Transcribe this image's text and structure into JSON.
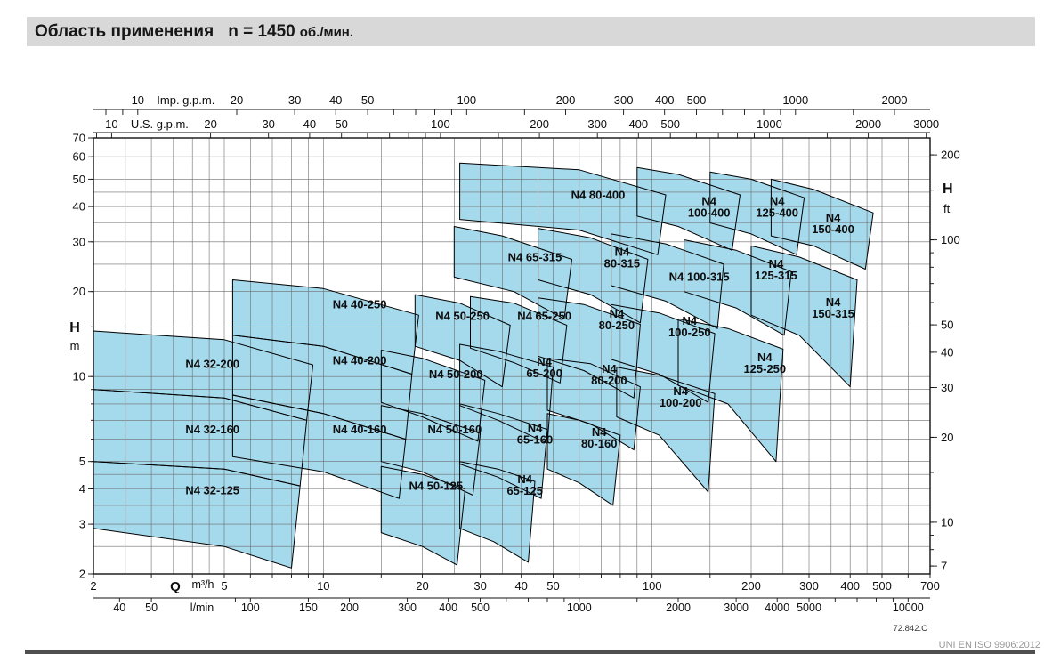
{
  "title": {
    "text": "Область применения",
    "speed": "n = 1450",
    "unit": "об./мин."
  },
  "footer": {
    "code": "72.842.C",
    "note": "UNI EN ISO 9906:2012"
  },
  "chart_data": {
    "type": "area",
    "title": "Область применения n = 1450 об./мин.",
    "description": "Application ranges (Q-H fields) of N4 pump models at n = 1450 rpm on log-log axes",
    "q_axis_m3h": {
      "symbol": "Q",
      "unit": "m³/h",
      "range": [
        2,
        700
      ],
      "ticks": [
        2,
        5,
        10,
        20,
        30,
        40,
        50,
        100,
        200,
        300,
        400,
        500,
        700
      ]
    },
    "h_axis_m": {
      "symbol": "H",
      "unit": "m",
      "range": [
        2,
        70
      ],
      "ticks": [
        70,
        60,
        50,
        40,
        30,
        20,
        10,
        5,
        4,
        3,
        2
      ]
    },
    "imp_gpm_axis": {
      "unit": "Imp. g.p.m.",
      "per_m3h": 3.6661,
      "ticks": [
        10,
        20,
        30,
        40,
        50,
        100,
        200,
        300,
        400,
        500,
        1000,
        2000
      ]
    },
    "us_gpm_axis": {
      "unit": "U.S. g.p.m.",
      "per_m3h": 4.4029,
      "ticks": [
        10,
        20,
        30,
        40,
        50,
        100,
        200,
        300,
        400,
        500,
        1000,
        2000,
        3000
      ]
    },
    "lmin_axis": {
      "unit": "l/min",
      "per_m3h": 16.667,
      "ticks": [
        40,
        50,
        100,
        150,
        200,
        300,
        400,
        500,
        1000,
        2000,
        3000,
        4000,
        5000,
        10000
      ]
    },
    "ft_axis": {
      "symbol": "H",
      "unit": "ft",
      "per_m": 3.2808,
      "ticks": [
        200,
        100,
        50,
        40,
        30,
        20,
        10,
        7
      ]
    },
    "regions": [
      {
        "name": "N4 32-125",
        "label_lines": [
          "N4 32-125"
        ],
        "label_at_qh": [
          4.6,
          3.95
        ],
        "polygon_qh": [
          [
            2,
            5.0
          ],
          [
            5,
            4.7
          ],
          [
            8.5,
            4.1
          ],
          [
            8.0,
            2.1
          ],
          [
            5,
            2.5
          ],
          [
            2,
            2.9
          ]
        ]
      },
      {
        "name": "N4 32-160",
        "label_lines": [
          "N4 32-160"
        ],
        "label_at_qh": [
          4.6,
          6.5
        ],
        "polygon_qh": [
          [
            2,
            9.0
          ],
          [
            5,
            8.4
          ],
          [
            8.9,
            7.0
          ],
          [
            8.5,
            4.1
          ],
          [
            5,
            4.7
          ],
          [
            2,
            5.0
          ]
        ]
      },
      {
        "name": "N4 32-200",
        "label_lines": [
          "N4 32-200"
        ],
        "label_at_qh": [
          4.6,
          11.1
        ],
        "polygon_qh": [
          [
            2,
            14.5
          ],
          [
            5,
            13.5
          ],
          [
            9.3,
            11.0
          ],
          [
            8.9,
            7.0
          ],
          [
            5,
            8.4
          ],
          [
            2,
            9.0
          ]
        ]
      },
      {
        "name": "N4 40-160",
        "label_lines": [
          "N4 40-160"
        ],
        "label_at_qh": [
          12.9,
          6.5
        ],
        "polygon_qh": [
          [
            5.3,
            8.6
          ],
          [
            10,
            7.4
          ],
          [
            17.8,
            6.0
          ],
          [
            17.0,
            3.7
          ],
          [
            10,
            4.6
          ],
          [
            5.3,
            5.2
          ]
        ]
      },
      {
        "name": "N4 40-200",
        "label_lines": [
          "N4 40-200"
        ],
        "label_at_qh": [
          12.9,
          11.4
        ],
        "polygon_qh": [
          [
            5.3,
            14.0
          ],
          [
            10,
            12.8
          ],
          [
            18.6,
            10.2
          ],
          [
            17.8,
            6.0
          ],
          [
            10,
            7.4
          ],
          [
            5.3,
            8.6
          ]
        ]
      },
      {
        "name": "N4 40-250",
        "label_lines": [
          "N4 40-250"
        ],
        "label_at_qh": [
          12.9,
          18.0
        ],
        "polygon_qh": [
          [
            5.3,
            22
          ],
          [
            10,
            20.5
          ],
          [
            19.5,
            16.5
          ],
          [
            18.6,
            10.2
          ],
          [
            10,
            12.8
          ],
          [
            5.3,
            14.0
          ]
        ]
      },
      {
        "name": "N4 50-125",
        "label_lines": [
          "N4 50-125"
        ],
        "label_at_qh": [
          22,
          4.1
        ],
        "polygon_qh": [
          [
            15,
            4.8
          ],
          [
            20,
            4.5
          ],
          [
            27,
            4.0
          ],
          [
            25.5,
            2.15
          ],
          [
            20,
            2.5
          ],
          [
            15,
            2.8
          ]
        ]
      },
      {
        "name": "N4 50-160",
        "label_lines": [
          "N4 50-160"
        ],
        "label_at_qh": [
          25.1,
          6.5
        ],
        "polygon_qh": [
          [
            15,
            7.9
          ],
          [
            20,
            7.4
          ],
          [
            30,
            6.3
          ],
          [
            28.5,
            3.8
          ],
          [
            20,
            4.6
          ],
          [
            15,
            5.0
          ]
        ]
      },
      {
        "name": "N4 50-200",
        "label_lines": [
          "N4 50-200"
        ],
        "label_at_qh": [
          25.3,
          10.2
        ],
        "polygon_qh": [
          [
            15,
            12.4
          ],
          [
            20,
            11.6
          ],
          [
            31,
            9.7
          ],
          [
            29.5,
            5.9
          ],
          [
            20,
            7.2
          ],
          [
            15,
            8.1
          ]
        ]
      },
      {
        "name": "N4 50-250",
        "label_lines": [
          "N4 50-250"
        ],
        "label_at_qh": [
          26.5,
          16.4
        ],
        "polygon_qh": [
          [
            19,
            19.5
          ],
          [
            26,
            18.2
          ],
          [
            37,
            15.2
          ],
          [
            35,
            9.2
          ],
          [
            26,
            11.4
          ],
          [
            19,
            12.8
          ]
        ]
      },
      {
        "name": "N4 65-125",
        "label_lines": [
          "N4",
          "65-125"
        ],
        "label_at_qh": [
          41,
          4.15
        ],
        "polygon_qh": [
          [
            26,
            5.0
          ],
          [
            34,
            4.7
          ],
          [
            44,
            4.25
          ],
          [
            42,
            2.2
          ],
          [
            33,
            2.6
          ],
          [
            26,
            2.9
          ]
        ]
      },
      {
        "name": "N4 65-160",
        "label_lines": [
          "N4",
          "65-160"
        ],
        "label_at_qh": [
          44,
          6.3
        ],
        "polygon_qh": [
          [
            26,
            8.0
          ],
          [
            34,
            7.4
          ],
          [
            48,
            6.5
          ],
          [
            46,
            3.7
          ],
          [
            34,
            4.4
          ],
          [
            26,
            4.9
          ]
        ]
      },
      {
        "name": "N4 65-200",
        "label_lines": [
          "N4",
          "65-200"
        ],
        "label_at_qh": [
          47,
          10.8
        ],
        "polygon_qh": [
          [
            26,
            13.0
          ],
          [
            34,
            12.3
          ],
          [
            50,
            10.8
          ],
          [
            48,
            5.8
          ],
          [
            34,
            7.0
          ],
          [
            26,
            7.9
          ]
        ]
      },
      {
        "name": "N4 65-250",
        "label_lines": [
          "N4 65-250"
        ],
        "label_at_qh": [
          47,
          16.4
        ],
        "polygon_qh": [
          [
            28,
            19.2
          ],
          [
            38,
            18.2
          ],
          [
            55,
            15.2
          ],
          [
            52.5,
            9.5
          ],
          [
            38,
            11.2
          ],
          [
            28,
            12.6
          ]
        ]
      },
      {
        "name": "N4 65-315",
        "label_lines": [
          "N4 65-315"
        ],
        "label_at_qh": [
          44,
          26.5
        ],
        "polygon_qh": [
          [
            25,
            34
          ],
          [
            35,
            31.5
          ],
          [
            57,
            26
          ],
          [
            54,
            16
          ],
          [
            38,
            20
          ],
          [
            25,
            22.5
          ]
        ]
      },
      {
        "name": "N4 80-160",
        "label_lines": [
          "N4",
          "80-160"
        ],
        "label_at_qh": [
          69,
          6.1
        ],
        "polygon_qh": [
          [
            48,
            7.4
          ],
          [
            60,
            7.0
          ],
          [
            80,
            6.2
          ],
          [
            76,
            3.5
          ],
          [
            60,
            4.2
          ],
          [
            48,
            4.7
          ]
        ]
      },
      {
        "name": "N4 80-200",
        "label_lines": [
          "N4",
          "80-200"
        ],
        "label_at_qh": [
          74,
          10.2
        ],
        "polygon_qh": [
          [
            48,
            11.6
          ],
          [
            65,
            11.1
          ],
          [
            92,
            9.2
          ],
          [
            88,
            5.5
          ],
          [
            65,
            6.8
          ],
          [
            48,
            7.6
          ]
        ]
      },
      {
        "name": "N4 80-250",
        "label_lines": [
          "N4",
          "80-250"
        ],
        "label_at_qh": [
          78,
          16.0
        ],
        "polygon_qh": [
          [
            45,
            19.0
          ],
          [
            62,
            18.0
          ],
          [
            92,
            15.3
          ],
          [
            88,
            8.4
          ],
          [
            62,
            10.5
          ],
          [
            45,
            11.8
          ]
        ]
      },
      {
        "name": "N4 80-315",
        "label_lines": [
          "N4",
          "80-315"
        ],
        "label_at_qh": [
          81,
          26.5
        ],
        "polygon_qh": [
          [
            45,
            33.5
          ],
          [
            65,
            31
          ],
          [
            97,
            26
          ],
          [
            92,
            15.5
          ],
          [
            65,
            19.5
          ],
          [
            45,
            22
          ]
        ]
      },
      {
        "name": "N4 80-400",
        "label_lines": [
          "N4 80-400"
        ],
        "label_at_qh": [
          68.5,
          44
        ],
        "polygon_qh": [
          [
            26,
            57
          ],
          [
            60,
            54
          ],
          [
            110,
            44
          ],
          [
            104,
            27
          ],
          [
            60,
            33
          ],
          [
            26,
            36
          ]
        ]
      },
      {
        "name": "N4 100-200",
        "label_lines": [
          "N4",
          "100-200"
        ],
        "label_at_qh": [
          122,
          8.5
        ],
        "polygon_qh": [
          [
            78,
            10.8
          ],
          [
            105,
            10.1
          ],
          [
            155,
            8.7
          ],
          [
            148,
            3.9
          ],
          [
            105,
            6.2
          ],
          [
            78,
            7.2
          ]
        ]
      },
      {
        "name": "N4 100-250",
        "label_lines": [
          "N4",
          "100-250"
        ],
        "label_at_qh": [
          130,
          15.1
        ],
        "polygon_qh": [
          [
            75,
            18.0
          ],
          [
            105,
            16.8
          ],
          [
            155,
            14.2
          ],
          [
            148,
            8.1
          ],
          [
            105,
            10.2
          ],
          [
            75,
            11.5
          ]
        ]
      },
      {
        "name": "N4 100-315",
        "label_lines": [
          "N4 100-315"
        ],
        "label_at_qh": [
          139,
          22.6
        ],
        "polygon_qh": [
          [
            75,
            32
          ],
          [
            110,
            29.5
          ],
          [
            165,
            25
          ],
          [
            158,
            14.8
          ],
          [
            110,
            18.5
          ],
          [
            75,
            21
          ]
        ]
      },
      {
        "name": "N4 100-400",
        "label_lines": [
          "N4",
          "100-400"
        ],
        "label_at_qh": [
          149,
          40
        ],
        "polygon_qh": [
          [
            90,
            55
          ],
          [
            120,
            52
          ],
          [
            185,
            44
          ],
          [
            175,
            28
          ],
          [
            120,
            34
          ],
          [
            90,
            37
          ]
        ]
      },
      {
        "name": "N4 125-250",
        "label_lines": [
          "N4",
          "125-250"
        ],
        "label_at_qh": [
          220,
          11.2
        ],
        "polygon_qh": [
          [
            120,
            16
          ],
          [
            170,
            14.8
          ],
          [
            250,
            12.5
          ],
          [
            238,
            5.0
          ],
          [
            170,
            8.0
          ],
          [
            120,
            9.3
          ]
        ]
      },
      {
        "name": "N4 125-315",
        "label_lines": [
          "N4",
          "125-315"
        ],
        "label_at_qh": [
          238,
          24
        ],
        "polygon_qh": [
          [
            125,
            30.5
          ],
          [
            180,
            28
          ],
          [
            265,
            23.5
          ],
          [
            252,
            14
          ],
          [
            180,
            17.5
          ],
          [
            125,
            20
          ]
        ]
      },
      {
        "name": "N4 125-400",
        "label_lines": [
          "N4",
          "125-400"
        ],
        "label_at_qh": [
          240,
          40
        ],
        "polygon_qh": [
          [
            150,
            53
          ],
          [
            200,
            50
          ],
          [
            290,
            43
          ],
          [
            275,
            27
          ],
          [
            200,
            32
          ],
          [
            150,
            35
          ]
        ]
      },
      {
        "name": "N4 150-315",
        "label_lines": [
          "N4",
          "150-315"
        ],
        "label_at_qh": [
          355,
          17.6
        ],
        "polygon_qh": [
          [
            200,
            29
          ],
          [
            280,
            26.5
          ],
          [
            420,
            22
          ],
          [
            400,
            9.2
          ],
          [
            280,
            14
          ],
          [
            200,
            16.5
          ]
        ]
      },
      {
        "name": "N4 150-400",
        "label_lines": [
          "N4",
          "150-400"
        ],
        "label_at_qh": [
          355,
          35
        ],
        "polygon_qh": [
          [
            230,
            50
          ],
          [
            310,
            46
          ],
          [
            470,
            38
          ],
          [
            445,
            24
          ],
          [
            310,
            29
          ],
          [
            230,
            31.5
          ]
        ]
      }
    ]
  }
}
